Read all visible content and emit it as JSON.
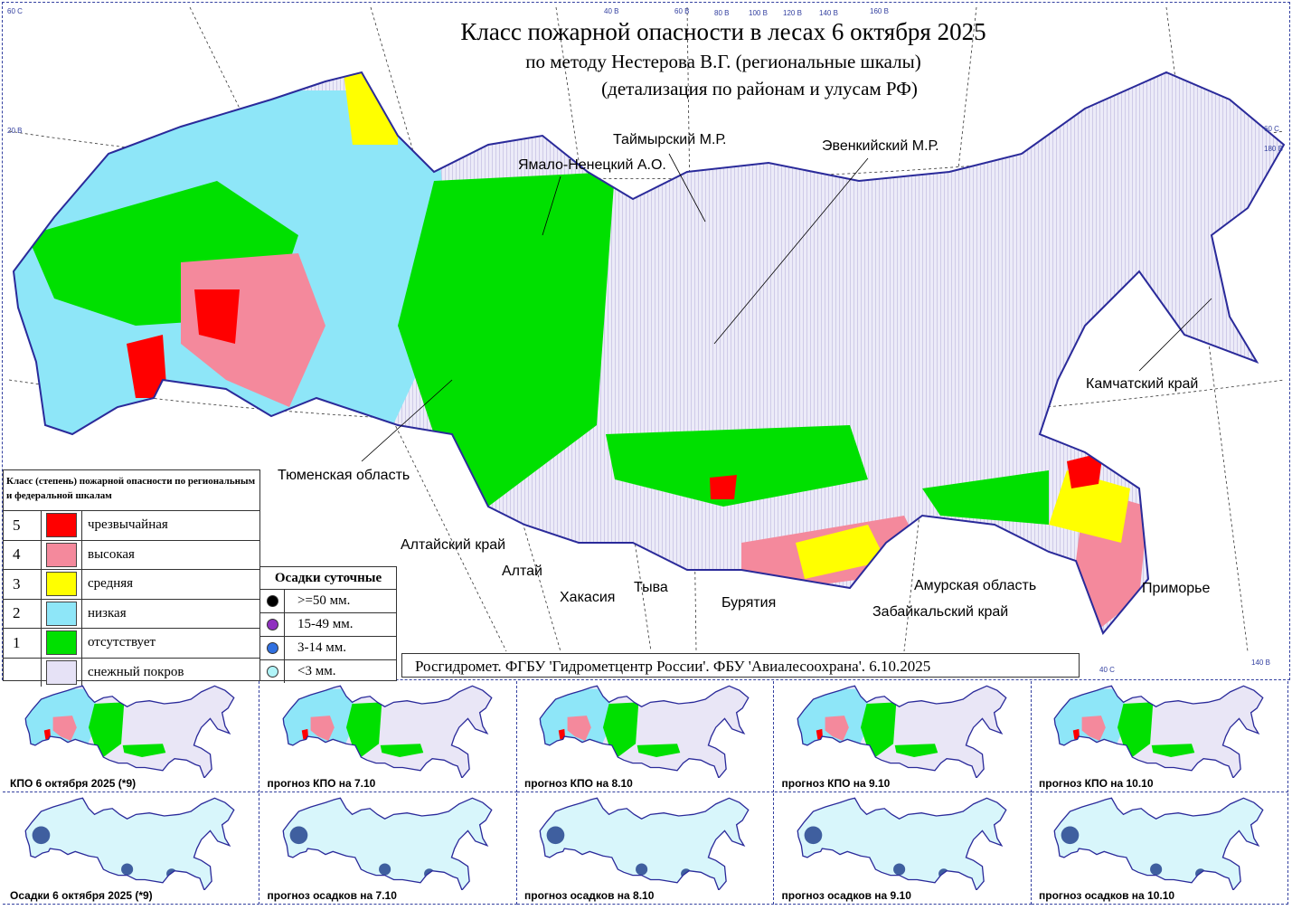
{
  "header": {
    "title": "Класс пожарной опасности в лесах 6  октября 2025",
    "subtitle1": "по методу Нестерова В.Г. (региональные шкалы)",
    "subtitle2": "(детализация по районам и улусам РФ)"
  },
  "regions": [
    "Таймырский М.Р.",
    "Ямало-Ненецкий А.О.",
    "Эвенкийский М.Р.",
    "Тюменская область",
    "Алтайский край",
    "Алтай",
    "Хакасия",
    "Тыва",
    "Бурятия",
    "Забайкальский край",
    "Амурская область",
    "Камчатский край",
    "Приморье"
  ],
  "legend": {
    "title": "Класс (степень) пожарной опасности по региональным и федеральной шкалам",
    "classes": [
      {
        "num": "5",
        "label": "чрезвычайная",
        "color": "#ff0000"
      },
      {
        "num": "4",
        "label": "высокая",
        "color": "#f4899c"
      },
      {
        "num": "3",
        "label": "средняя",
        "color": "#ffff00"
      },
      {
        "num": "2",
        "label": "низкая",
        "color": "#8ee6f8"
      },
      {
        "num": "1",
        "label": "отсутствует",
        "color": "#00e000"
      },
      {
        "num": "",
        "label": "снежный покров",
        "color": "#e6e2f6"
      }
    ]
  },
  "precipitation": {
    "title": "Осадки суточные",
    "items": [
      {
        "label": ">=50 мм.",
        "color": "#000000"
      },
      {
        "label": "15-49 мм.",
        "color": "#9030c0"
      },
      {
        "label": "3-14 мм.",
        "color": "#3070e0"
      },
      {
        "label": "<3 мм.",
        "color": "#b0f4f8"
      }
    ]
  },
  "credit": "Росгидромет. ФГБУ 'Гидрометцентр России'. ФБУ 'Авиалесоохрана'. 6.10.2025",
  "coords": [
    "60 С",
    "40 В",
    "60 В",
    "80 В",
    "100 В",
    "120 В",
    "140 В",
    "160 В",
    "20 В",
    "60 С",
    "180 В",
    "40 С",
    "140 В"
  ],
  "thumbnails": {
    "fire": [
      "КПО 6  октября 2025 (*9)",
      "прогноз КПО на 7.10",
      "прогноз КПО на 8.10",
      "прогноз КПО на 9.10",
      "прогноз КПО на 10.10"
    ],
    "precip": [
      "Осадки 6  октября 2025 (*9)",
      "прогноз осадков на 7.10",
      "прогноз осадков на 8.10",
      "прогноз осадков на 9.10",
      "прогноз осадков на 10.10"
    ]
  }
}
